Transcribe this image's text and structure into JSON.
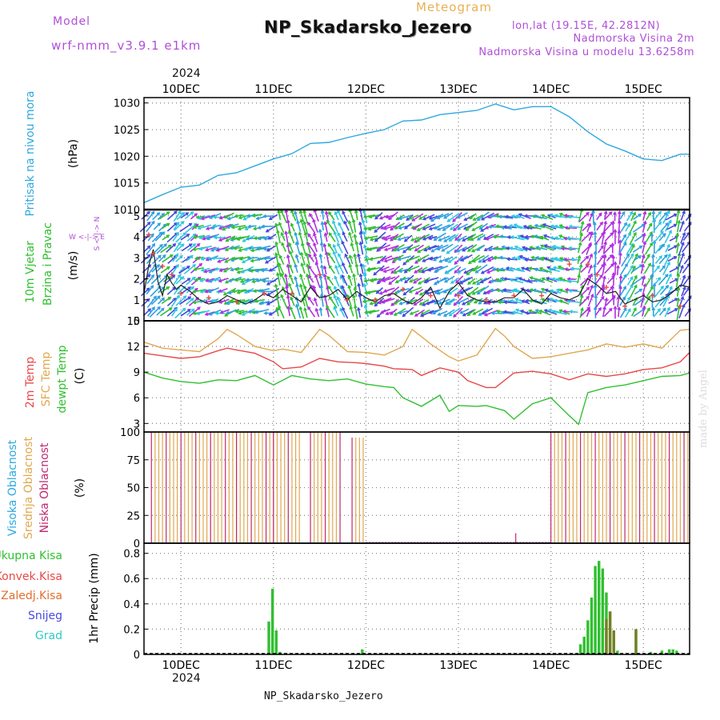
{
  "header": {
    "model_label": "Model",
    "model_name": "wrf-nmm_v3.9.1 e1km",
    "meteogram_label": "Meteogram",
    "station": "NP_Skadarsko_Jezero",
    "lonlat": "lon,lat (19.15E, 42.2812N)",
    "altitude": "Nadmorska Visina 2m",
    "model_altitude": "Nadmorska Visina u modelu 13.6258m",
    "year": "2024",
    "footer": "NP_Skadarsko_Jezero",
    "watermark": "made by Angel"
  },
  "colors": {
    "pressure": "#2ea8e0",
    "temp2m": "#e84848",
    "sfc_temp": "#e0a850",
    "dewpt": "#30c030",
    "high_cloud": "#2ea8e0",
    "mid_cloud": "#e0a850",
    "low_cloud": "#c02870",
    "precip_total": "#30c030",
    "precip_conv": "#e84848",
    "precip_frz": "#e07030",
    "snow": "#4848e0",
    "hail": "#30c8c8",
    "wind_calm": "#30c030",
    "wind_mid": "#30c8e0",
    "wind_strong": "#4848e0",
    "wind_max": "#b030e0"
  },
  "chart_data": [
    {
      "type": "line",
      "panel": "pressure",
      "ylabel_side": "Pritisak na nivou mora",
      "unit": "(hPa)",
      "yticks": [
        1010,
        1015,
        1020,
        1025,
        1030
      ],
      "ylim": [
        1010,
        1031
      ],
      "xlim": [
        9.6,
        15.5
      ],
      "grid": true,
      "x": [
        9.6,
        9.8,
        10.0,
        10.2,
        10.4,
        10.6,
        10.8,
        11.0,
        11.2,
        11.4,
        11.6,
        11.8,
        12.0,
        12.2,
        12.4,
        12.6,
        12.8,
        13.0,
        13.2,
        13.4,
        13.6,
        13.8,
        14.0,
        14.2,
        14.4,
        14.6,
        14.8,
        15.0,
        15.2,
        15.4,
        15.5
      ],
      "y": [
        1011.3,
        1012.8,
        1014.2,
        1014.6,
        1016.4,
        1016.9,
        1018.2,
        1019.5,
        1020.5,
        1022.4,
        1022.6,
        1023.5,
        1024.3,
        1025.0,
        1026.6,
        1026.8,
        1027.8,
        1028.2,
        1028.6,
        1029.8,
        1028.7,
        1029.3,
        1029.3,
        1027.4,
        1024.6,
        1022.3,
        1021.0,
        1019.5,
        1019.2,
        1020.4,
        1020.4
      ]
    },
    {
      "type": "line",
      "panel": "wind",
      "ylabel_side": [
        "10m Vjetar",
        "Brzina i Pravac"
      ],
      "unit": "(m/s)",
      "compass": {
        "n": "N",
        "s": "S",
        "e": "E",
        "w": "W"
      },
      "yticks": [
        0,
        1,
        2,
        3,
        4,
        5
      ],
      "ylim": [
        0,
        5.3
      ],
      "xlim": [
        9.6,
        15.5
      ],
      "grid": true,
      "series": [
        {
          "name": "wind speed",
          "x": [
            9.6,
            9.65,
            9.7,
            9.75,
            9.8,
            9.85,
            9.9,
            9.95,
            10.0,
            10.1,
            10.2,
            10.3,
            10.4,
            10.5,
            10.6,
            10.7,
            10.8,
            10.9,
            11.0,
            11.1,
            11.2,
            11.3,
            11.4,
            11.5,
            11.6,
            11.7,
            11.8,
            11.9,
            12.0,
            12.1,
            12.2,
            12.3,
            12.4,
            12.5,
            12.6,
            12.7,
            12.8,
            12.9,
            13.0,
            13.1,
            13.2,
            13.3,
            13.4,
            13.5,
            13.6,
            13.7,
            13.8,
            13.9,
            14.0,
            14.1,
            14.2,
            14.3,
            14.4,
            14.5,
            14.6,
            14.7,
            14.8,
            14.9,
            15.0,
            15.1,
            15.2,
            15.3,
            15.4,
            15.5
          ],
          "y": [
            1.3,
            2.6,
            3.4,
            1.9,
            1.2,
            2.2,
            1.8,
            1.5,
            1.7,
            1.4,
            1.0,
            0.8,
            0.9,
            1.2,
            1.0,
            0.8,
            1.0,
            1.3,
            1.1,
            1.5,
            1.2,
            0.9,
            1.6,
            1.1,
            1.2,
            1.5,
            1.0,
            1.4,
            1.1,
            0.9,
            1.2,
            1.3,
            1.0,
            0.8,
            1.1,
            1.6,
            0.6,
            1.4,
            1.8,
            1.2,
            1.0,
            0.9,
            0.9,
            1.1,
            1.1,
            1.5,
            1.0,
            0.8,
            1.3,
            1.1,
            1.0,
            1.2,
            2.0,
            1.7,
            1.3,
            1.4,
            0.8,
            1.0,
            1.2,
            0.9,
            1.0,
            1.3,
            1.7,
            1.6
          ]
        },
        {
          "name": "gusts",
          "x": [
            9.65,
            9.7,
            9.8,
            9.9,
            10.0,
            10.3,
            10.6,
            10.9,
            11.2,
            11.5,
            11.8,
            12.1,
            12.4,
            12.7,
            13.0,
            13.3,
            13.6,
            13.9,
            14.2,
            14.4,
            14.5,
            14.6,
            14.8,
            15.1,
            15.4
          ],
          "y": [
            4.1,
            3.2,
            2.6,
            2.2,
            1.3,
            1.1,
            0.9,
            1.3,
            1.3,
            2.2,
            1.0,
            1.0,
            1.5,
            1.2,
            1.2,
            1.0,
            1.2,
            1.2,
            2.7,
            2.7,
            2.2,
            1.6,
            0.7,
            1.2,
            0.7
          ]
        }
      ],
      "arrows_note": "wind direction arrows at each time step"
    },
    {
      "type": "line",
      "panel": "temperature",
      "ylabel_side": [
        "2m Temp",
        "SFC Temp",
        "dewpt Temp"
      ],
      "unit": "(C)",
      "yticks": [
        3,
        6,
        9,
        12,
        15
      ],
      "ylim": [
        2,
        15
      ],
      "xlim": [
        9.6,
        15.5
      ],
      "grid": true,
      "series": [
        {
          "name": "2m Temp",
          "x": [
            9.6,
            9.8,
            10.0,
            10.2,
            10.4,
            10.5,
            10.6,
            10.8,
            11.0,
            11.1,
            11.3,
            11.5,
            11.7,
            11.9,
            12.0,
            12.2,
            12.3,
            12.5,
            12.6,
            12.8,
            13.0,
            13.1,
            13.3,
            13.4,
            13.6,
            13.8,
            14.0,
            14.2,
            14.4,
            14.6,
            14.8,
            15.0,
            15.2,
            15.4,
            15.5
          ],
          "y": [
            11.2,
            10.9,
            10.6,
            10.8,
            11.5,
            11.8,
            11.6,
            11.2,
            10.2,
            9.4,
            9.6,
            10.6,
            10.2,
            10.1,
            10.0,
            9.7,
            9.4,
            9.3,
            8.6,
            9.5,
            9.0,
            8.0,
            7.2,
            7.2,
            8.9,
            9.1,
            8.8,
            8.1,
            8.8,
            8.5,
            8.8,
            9.3,
            9.5,
            10.2,
            11.3
          ]
        },
        {
          "name": "SFC Temp",
          "x": [
            9.6,
            9.8,
            10.0,
            10.2,
            10.4,
            10.5,
            10.6,
            10.8,
            11.0,
            11.1,
            11.3,
            11.5,
            11.6,
            11.8,
            12.0,
            12.2,
            12.4,
            12.5,
            12.7,
            12.9,
            13.0,
            13.2,
            13.4,
            13.5,
            13.6,
            13.8,
            14.0,
            14.2,
            14.4,
            14.6,
            14.8,
            15.0,
            15.2,
            15.4,
            15.5
          ],
          "y": [
            12.5,
            11.8,
            11.6,
            11.4,
            12.9,
            14.0,
            13.4,
            12.0,
            11.5,
            11.7,
            11.3,
            14.0,
            13.3,
            11.4,
            11.3,
            11.0,
            12.0,
            14.0,
            12.3,
            10.8,
            10.3,
            11.0,
            14.1,
            13.2,
            12.0,
            10.6,
            10.8,
            11.2,
            11.6,
            12.3,
            11.9,
            12.3,
            11.8,
            13.9,
            14.0
          ]
        },
        {
          "name": "dewpt Temp",
          "x": [
            9.6,
            9.8,
            10.0,
            10.2,
            10.4,
            10.6,
            10.8,
            11.0,
            11.2,
            11.4,
            11.6,
            11.8,
            12.0,
            12.2,
            12.3,
            12.4,
            12.6,
            12.8,
            12.9,
            13.0,
            13.2,
            13.3,
            13.5,
            13.6,
            13.8,
            14.0,
            14.2,
            14.3,
            14.4,
            14.6,
            14.8,
            15.0,
            15.2,
            15.4,
            15.5
          ],
          "y": [
            9.0,
            8.3,
            7.9,
            7.7,
            8.1,
            8.0,
            8.6,
            7.5,
            8.6,
            8.2,
            8.0,
            8.2,
            7.6,
            7.3,
            7.2,
            6.0,
            5.0,
            6.3,
            4.4,
            5.1,
            5.0,
            5.1,
            4.5,
            3.5,
            5.3,
            6.0,
            3.9,
            2.9,
            6.6,
            7.2,
            7.5,
            8.0,
            8.5,
            8.6,
            8.9
          ]
        }
      ]
    },
    {
      "type": "bar",
      "panel": "clouds",
      "ylabel_side": [
        "Visoka Oblacnost",
        "Srednja Oblacnost",
        "Niska Oblacnost"
      ],
      "unit": "(%)",
      "yticks": [
        0,
        25,
        50,
        75,
        100
      ],
      "ylim": [
        0,
        100
      ],
      "xlim": [
        9.6,
        15.5
      ],
      "grid": true,
      "segments": [
        {
          "x0": 9.68,
          "x1": 10.6,
          "value": 100
        },
        {
          "x0": 10.6,
          "x1": 11.0,
          "value": 100
        },
        {
          "x0": 11.0,
          "x1": 11.3,
          "value": 100
        },
        {
          "x0": 11.4,
          "x1": 11.75,
          "value": 100
        },
        {
          "x0": 11.85,
          "x1": 12.0,
          "value": 95
        },
        {
          "x0": 14.0,
          "x1": 15.5,
          "value": 100
        }
      ],
      "small_spikes": [
        {
          "x": 13.62,
          "value": 9
        }
      ]
    },
    {
      "type": "bar",
      "panel": "precip",
      "ylabel_side": [
        "Ukupna Kisa",
        "Konvek.Kisa",
        "Zaledj.Kisa",
        "Snijeg",
        "Grad"
      ],
      "unit": "1hr Precip (mm)",
      "yticks": [
        0,
        0.2,
        0.4,
        0.6,
        0.8
      ],
      "ylim": [
        0,
        0.88
      ],
      "xlim": [
        9.6,
        15.5
      ],
      "grid": true,
      "x": [
        10.95,
        10.99,
        11.03,
        11.07,
        11.96,
        14.32,
        14.36,
        14.4,
        14.44,
        14.48,
        14.52,
        14.56,
        14.6,
        14.64,
        14.68,
        14.72,
        14.92,
        15.08,
        15.2,
        15.28,
        15.32,
        15.36
      ],
      "values": [
        0.26,
        0.52,
        0.19,
        0.02,
        0.04,
        0.08,
        0.14,
        0.27,
        0.45,
        0.7,
        0.74,
        0.68,
        0.49,
        0.34,
        0.19,
        0.03,
        0.2,
        0.02,
        0.03,
        0.04,
        0.04,
        0.03
      ],
      "conv_values": [
        0,
        0,
        0,
        0,
        0,
        0,
        0,
        0,
        0,
        0,
        0,
        0,
        0.28,
        0.34,
        0.19,
        0,
        0.2,
        0,
        0,
        0,
        0,
        0
      ]
    }
  ],
  "x_axis": {
    "ticks": [
      {
        "x": 10,
        "label": "10DEC"
      },
      {
        "x": 11,
        "label": "11DEC"
      },
      {
        "x": 12,
        "label": "12DEC"
      },
      {
        "x": 13,
        "label": "13DEC"
      },
      {
        "x": 14,
        "label": "14DEC"
      },
      {
        "x": 15,
        "label": "15DEC"
      }
    ]
  }
}
